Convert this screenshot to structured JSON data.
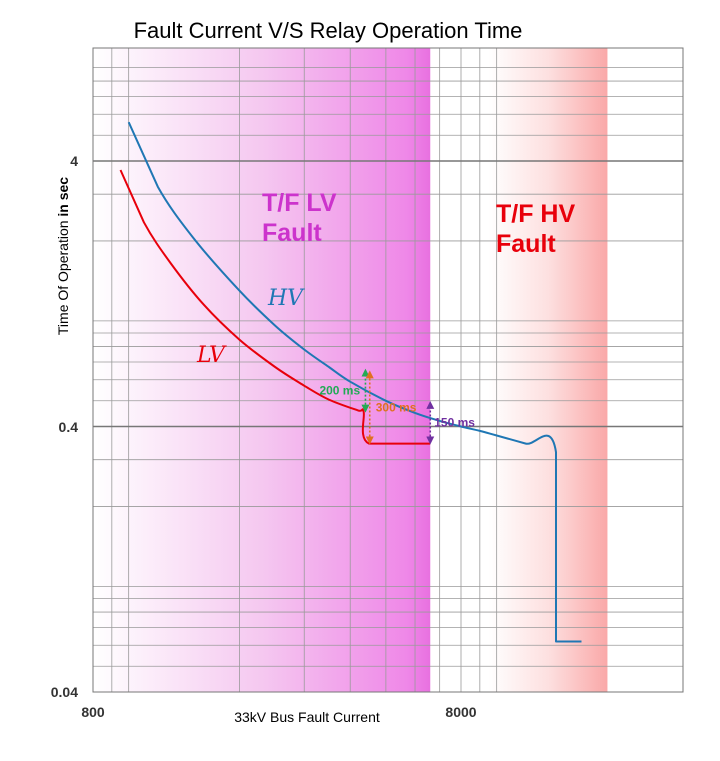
{
  "chart_data": {
    "type": "line",
    "title": "Fault Current V/S Relay Operation Time",
    "ylabel_parts": [
      "Time Of Operation ",
      "in sec"
    ],
    "xlabel": "33kV Bus Fault Current",
    "x_scale": "log",
    "y_scale": "log",
    "xlim": [
      800,
      20000
    ],
    "ylim": [
      0.04,
      10
    ],
    "grid": true,
    "x_tick_labels": [
      "800",
      "8000"
    ],
    "y_tick_labels": [
      "0.04",
      "0.4",
      "4"
    ],
    "series": [
      {
        "name": "HV",
        "color": "#1f77b4",
        "points": [
          [
            1000,
            5.6
          ],
          [
            1200,
            3.2
          ],
          [
            1500,
            2.05
          ],
          [
            2000,
            1.3
          ],
          [
            2500,
            0.96
          ],
          [
            3000,
            0.78
          ],
          [
            3500,
            0.67
          ],
          [
            4000,
            0.59
          ],
          [
            5000,
            0.5
          ],
          [
            6000,
            0.45
          ],
          [
            7000,
            0.42
          ],
          [
            8000,
            0.4
          ],
          [
            9000,
            0.385
          ],
          [
            10000,
            0.37
          ],
          [
            12000,
            0.345
          ],
          [
            14500,
            0.32
          ],
          [
            14500,
            0.062
          ],
          [
            17000,
            0.062
          ]
        ]
      },
      {
        "name": "LV",
        "color": "#e8000b",
        "points": [
          [
            950,
            3.7
          ],
          [
            1100,
            2.35
          ],
          [
            1300,
            1.65
          ],
          [
            1600,
            1.15
          ],
          [
            2000,
            0.85
          ],
          [
            2500,
            0.67
          ],
          [
            3000,
            0.57
          ],
          [
            3500,
            0.505
          ],
          [
            4200,
            0.46
          ],
          [
            4350,
            0.455
          ],
          [
            4500,
            0.345
          ],
          [
            6600,
            0.345
          ]
        ]
      }
    ],
    "regions": [
      {
        "label_lines": [
          "T/F LV",
          "Fault"
        ],
        "color": "#cc33cc",
        "x_range": [
          800,
          6600
        ]
      },
      {
        "label_lines": [
          "T/F HV",
          "Fault"
        ],
        "color": "#e8000b",
        "x_range": [
          9500,
          20000
        ]
      }
    ],
    "annotations": [
      {
        "text": "200 ms",
        "x": 4400,
        "y_from": 0.455,
        "y_to": 0.655,
        "color": "#22aa55"
      },
      {
        "text": "300 ms",
        "x": 4520,
        "y_from": 0.345,
        "y_to": 0.645,
        "color": "#e07020"
      },
      {
        "text": "150 ms",
        "x": 6600,
        "y_from": 0.345,
        "y_to": 0.495,
        "color": "#7030a0"
      }
    ]
  }
}
